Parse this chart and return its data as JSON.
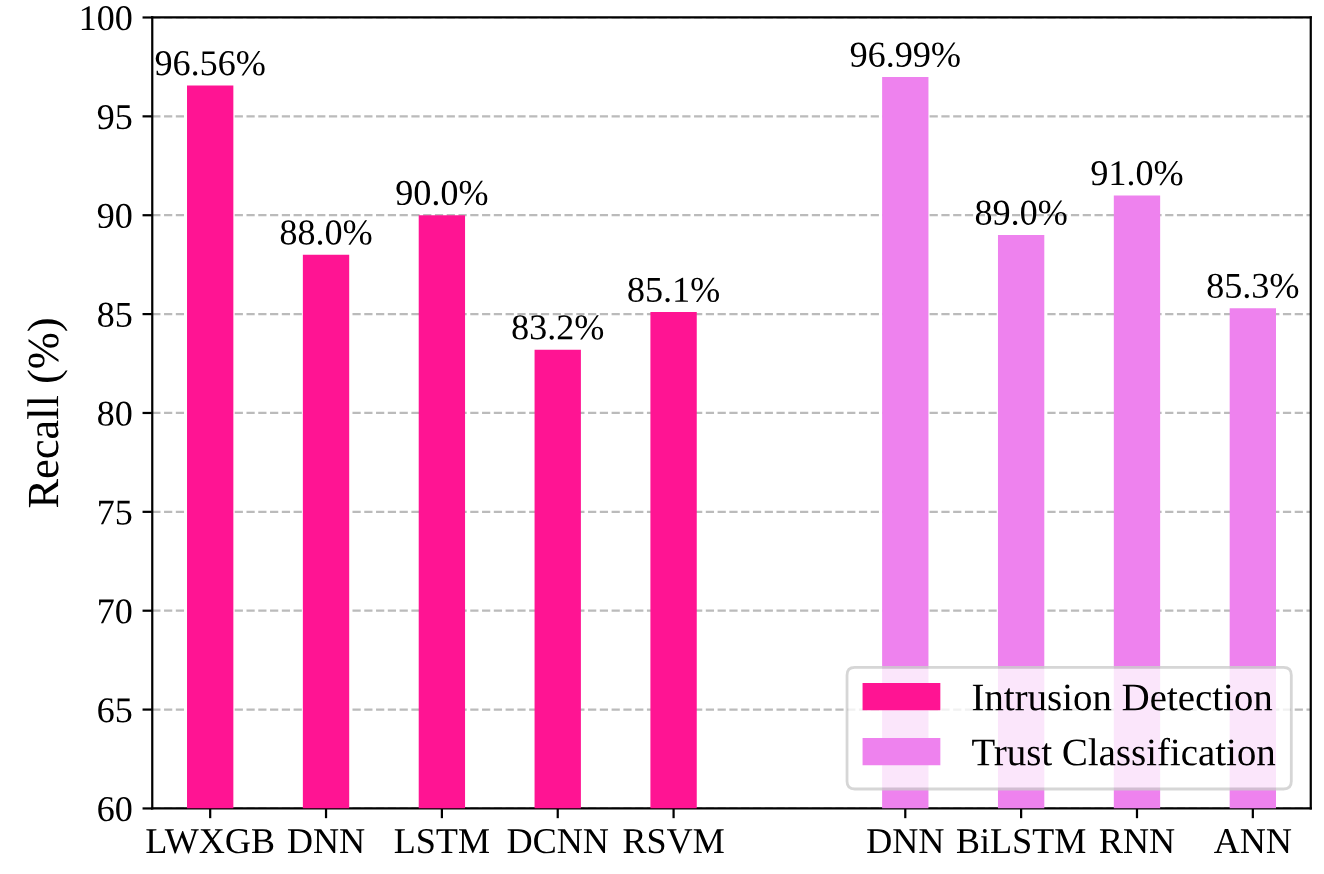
{
  "chart_data": {
    "type": "bar",
    "ylabel": "Recall (%)",
    "categories": [
      "LWXGB",
      "DNN",
      "LSTM",
      "DCNN",
      "RSVM",
      null,
      "DNN",
      "BiLSTM",
      "RNN",
      "ANN"
    ],
    "series": [
      {
        "name": "Intrusion Detection",
        "color": "#ff1493",
        "values": [
          96.56,
          88.0,
          90.0,
          83.2,
          85.1,
          null,
          null,
          null,
          null,
          null
        ],
        "value_labels": [
          "96.56%",
          "88.0%",
          "90.0%",
          "83.2%",
          "85.1%",
          null,
          null,
          null,
          null,
          null
        ]
      },
      {
        "name": "Trust Classification",
        "color": "#ee82ee",
        "values": [
          null,
          null,
          null,
          null,
          null,
          null,
          96.99,
          89.0,
          91.0,
          85.3
        ],
        "value_labels": [
          null,
          null,
          null,
          null,
          null,
          null,
          "96.99%",
          "89.0%",
          "91.0%",
          "85.3%"
        ]
      }
    ],
    "ylim": [
      60,
      100
    ],
    "yticks": [
      60,
      65,
      70,
      75,
      80,
      85,
      90,
      95,
      100
    ],
    "grid": "y",
    "legend": "bottom right"
  }
}
